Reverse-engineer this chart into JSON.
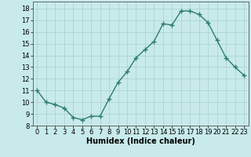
{
  "x": [
    0,
    1,
    2,
    3,
    4,
    5,
    6,
    7,
    8,
    9,
    10,
    11,
    12,
    13,
    14,
    15,
    16,
    17,
    18,
    19,
    20,
    21,
    22,
    23
  ],
  "y": [
    11,
    10,
    9.8,
    9.5,
    8.7,
    8.5,
    8.8,
    8.8,
    10.3,
    11.7,
    12.6,
    13.8,
    14.5,
    15.2,
    16.7,
    16.6,
    17.8,
    17.8,
    17.5,
    16.8,
    15.3,
    13.8,
    13.0,
    12.3
  ],
  "line_color": "#2e7d6e",
  "marker": "+",
  "marker_color": "#2e7d6e",
  "bg_color": "#c8eaea",
  "grid_color": "#a8d0d0",
  "xlabel": "Humidex (Indice chaleur)",
  "xlim": [
    -0.5,
    23.5
  ],
  "ylim": [
    8,
    18.6
  ],
  "yticks": [
    8,
    9,
    10,
    11,
    12,
    13,
    14,
    15,
    16,
    17,
    18
  ],
  "xticks": [
    0,
    1,
    2,
    3,
    4,
    5,
    6,
    7,
    8,
    9,
    10,
    11,
    12,
    13,
    14,
    15,
    16,
    17,
    18,
    19,
    20,
    21,
    22,
    23
  ],
  "xlabel_fontsize": 7,
  "tick_fontsize": 6,
  "linewidth": 1.0,
  "markersize": 4
}
